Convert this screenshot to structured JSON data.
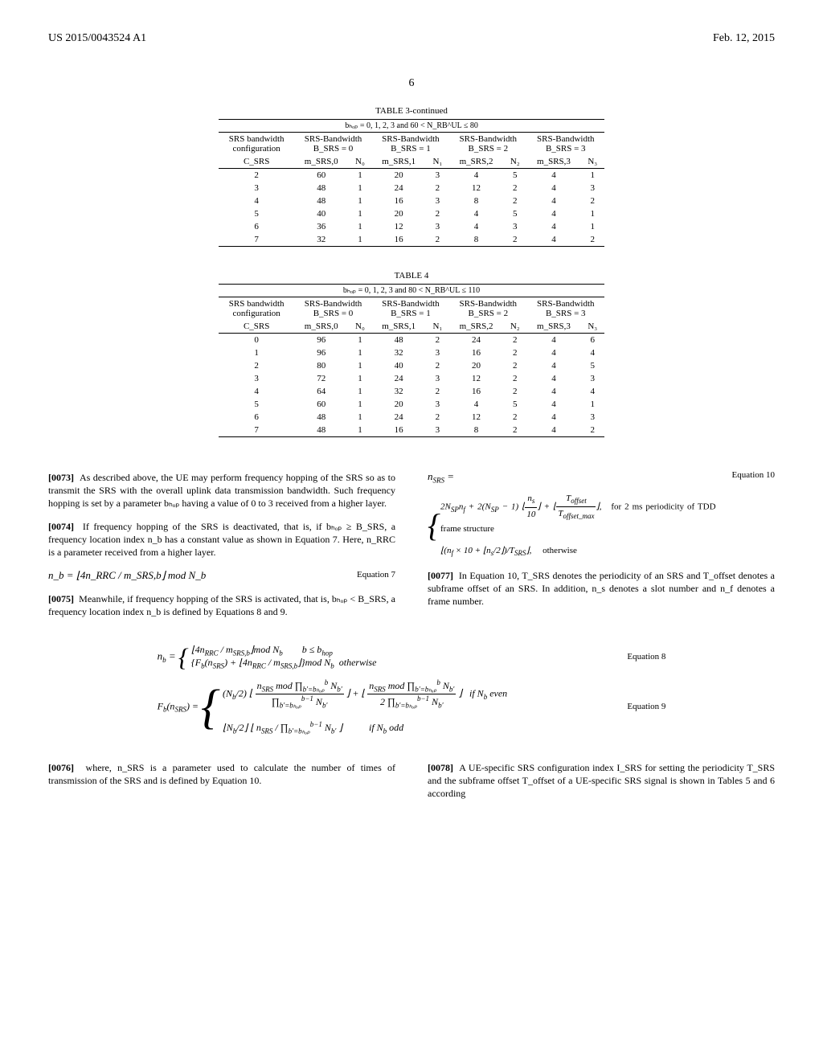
{
  "header": {
    "patent_number": "US 2015/0043524 A1",
    "page_label": "6",
    "date": "Feb. 12, 2015"
  },
  "tables": {
    "table3": {
      "title": "TABLE 3-continued",
      "caption": "bₕₒₚ = 0, 1, 2, 3 and 60 < N_RB^UL ≤ 80",
      "header_labels": {
        "col1": "SRS bandwidth configuration",
        "group_labels": [
          "SRS-Bandwidth B_SRS = 0",
          "SRS-Bandwidth B_SRS = 1",
          "SRS-Bandwidth B_SRS = 2",
          "SRS-Bandwidth B_SRS = 3"
        ],
        "sub": [
          "C_SRS",
          "m_SRS,0",
          "N₀",
          "m_SRS,1",
          "N₁",
          "m_SRS,2",
          "N₂",
          "m_SRS,3",
          "N₃"
        ]
      },
      "rows": [
        [
          "2",
          "60",
          "1",
          "20",
          "3",
          "4",
          "5",
          "4",
          "1"
        ],
        [
          "3",
          "48",
          "1",
          "24",
          "2",
          "12",
          "2",
          "4",
          "3"
        ],
        [
          "4",
          "48",
          "1",
          "16",
          "3",
          "8",
          "2",
          "4",
          "2"
        ],
        [
          "5",
          "40",
          "1",
          "20",
          "2",
          "4",
          "5",
          "4",
          "1"
        ],
        [
          "6",
          "36",
          "1",
          "12",
          "3",
          "4",
          "3",
          "4",
          "1"
        ],
        [
          "7",
          "32",
          "1",
          "16",
          "2",
          "8",
          "2",
          "4",
          "2"
        ]
      ]
    },
    "table4": {
      "title": "TABLE 4",
      "caption": "bₕₒₚ = 0, 1, 2, 3 and 80 < N_RB^UL ≤ 110",
      "header_labels": {
        "col1": "SRS bandwidth configuration",
        "group_labels": [
          "SRS-Bandwidth B_SRS = 0",
          "SRS-Bandwidth B_SRS = 1",
          "SRS-Bandwidth B_SRS = 2",
          "SRS-Bandwidth B_SRS = 3"
        ],
        "sub": [
          "C_SRS",
          "m_SRS,0",
          "N₀",
          "m_SRS,1",
          "N₁",
          "m_SRS,2",
          "N₂",
          "m_SRS,3",
          "N₃"
        ]
      },
      "rows": [
        [
          "0",
          "96",
          "1",
          "48",
          "2",
          "24",
          "2",
          "4",
          "6"
        ],
        [
          "1",
          "96",
          "1",
          "32",
          "3",
          "16",
          "2",
          "4",
          "4"
        ],
        [
          "2",
          "80",
          "1",
          "40",
          "2",
          "20",
          "2",
          "4",
          "5"
        ],
        [
          "3",
          "72",
          "1",
          "24",
          "3",
          "12",
          "2",
          "4",
          "3"
        ],
        [
          "4",
          "64",
          "1",
          "32",
          "2",
          "16",
          "2",
          "4",
          "4"
        ],
        [
          "5",
          "60",
          "1",
          "20",
          "3",
          "4",
          "5",
          "4",
          "1"
        ],
        [
          "6",
          "48",
          "1",
          "24",
          "2",
          "12",
          "2",
          "4",
          "3"
        ],
        [
          "7",
          "48",
          "1",
          "16",
          "3",
          "8",
          "2",
          "4",
          "2"
        ]
      ]
    }
  },
  "paragraphs": {
    "p0073": "As described above, the UE may perform frequency hopping of the SRS so as to transmit the SRS with the overall uplink data transmission bandwidth. Such frequency hopping is set by a parameter bₕₒₚ having a value of 0 to 3 received from a higher layer.",
    "p0074": "If frequency hopping of the SRS is deactivated, that is, if bₕₒₚ ≥ B_SRS, a frequency location index n_b has a constant value as shown in Equation 7. Here, n_RRC is a parameter received from a higher layer.",
    "p0075": "Meanwhile, if frequency hopping of the SRS is activated, that is, bₕₒₚ < B_SRS, a frequency location index n_b is defined by Equations 8 and 9.",
    "p0076": "where, n_SRS is a parameter used to calculate the number of times of transmission of the SRS and is defined by Equation 10.",
    "p0077": "In Equation 10, T_SRS denotes the periodicity of an SRS and T_offset denotes a subframe offset of an SRS. In addition, n_s denotes a slot number and n_f denotes a frame number.",
    "p0078": "A UE-specific SRS configuration index I_SRS for setting the periodicity T_SRS and the subframe offset T_offset of a UE-specific SRS signal is shown in Tables 5 and 6 according"
  },
  "equations": {
    "eq7": {
      "text": "n_b = ⌊4n_RRC / m_SRS,b⌋ mod N_b",
      "label": "Equation 7"
    },
    "eq8": {
      "label": "Equation 8"
    },
    "eq9": {
      "label": "Equation 9"
    },
    "eq10": {
      "label": "Equation 10",
      "case_a": "for 2 ms periodicity of TDD frame structure",
      "case_b": "otherwise"
    }
  }
}
